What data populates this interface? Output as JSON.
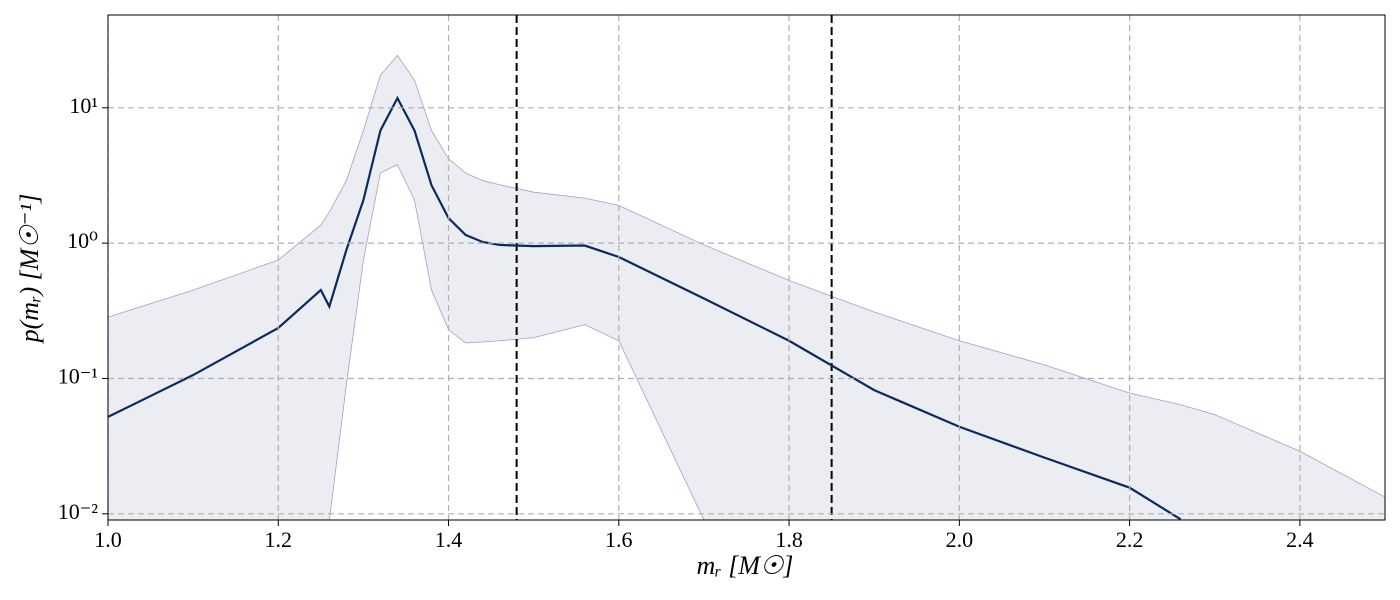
{
  "chart_data": {
    "type": "line",
    "x_label": "mᵣ [M☉]",
    "y_label": "p(mᵣ) [M☉⁻¹]",
    "log_y": true,
    "grid": true,
    "x": [
      1.0,
      1.1,
      1.2,
      1.25,
      1.26,
      1.28,
      1.3,
      1.32,
      1.34,
      1.36,
      1.38,
      1.4,
      1.42,
      1.44,
      1.46,
      1.5,
      1.56,
      1.6,
      1.7,
      1.8,
      1.9,
      2.0,
      2.1,
      2.2,
      2.26,
      2.3,
      2.4,
      2.5
    ],
    "series": [
      {
        "color": "#0b2a5e",
        "values": [
          0.052,
          0.106,
          0.236,
          0.45,
          0.34,
          0.89,
          2.08,
          6.8,
          11.8,
          6.8,
          2.68,
          1.53,
          1.15,
          1.02,
          0.97,
          0.95,
          0.96,
          0.79,
          0.39,
          0.19,
          0.082,
          0.044,
          0.026,
          0.0156,
          0.0091,
          null,
          null,
          null
        ]
      }
    ],
    "band": {
      "color": "#9aa6c0",
      "upper": [
        0.284,
        0.45,
        0.75,
        1.36,
        1.7,
        2.9,
        6.8,
        17.4,
        24.4,
        16,
        6.8,
        4.2,
        3.3,
        2.9,
        2.7,
        2.38,
        2.15,
        1.9,
        0.97,
        0.53,
        0.31,
        0.19,
        0.126,
        0.078,
        0.064,
        0.054,
        0.029,
        0.0133
      ],
      "lower": [
        null,
        null,
        null,
        null,
        0.009,
        0.09,
        0.75,
        3.3,
        3.8,
        2.08,
        0.45,
        0.23,
        0.183,
        0.186,
        0.19,
        0.2,
        0.25,
        0.19,
        0.009,
        null,
        null,
        null,
        null,
        null,
        null,
        null,
        null,
        null
      ]
    },
    "vlines": [
      1.48,
      1.85
    ],
    "xlim": [
      1.0,
      2.5
    ],
    "xticks": [
      {
        "value": 1.0,
        "label": "1.0"
      },
      1.2,
      1.4,
      1.6,
      1.8,
      {
        "value": 2.0,
        "label": "2.0"
      },
      2.2,
      2.4
    ],
    "ylim": [
      0.009,
      48.5
    ],
    "yticks": [
      {
        "value": 0.01,
        "label": "10⁻²"
      },
      {
        "value": 0.1,
        "label": "10⁻¹"
      },
      {
        "value": 1,
        "label": "10⁰"
      },
      {
        "value": 10,
        "label": "10¹"
      }
    ]
  }
}
